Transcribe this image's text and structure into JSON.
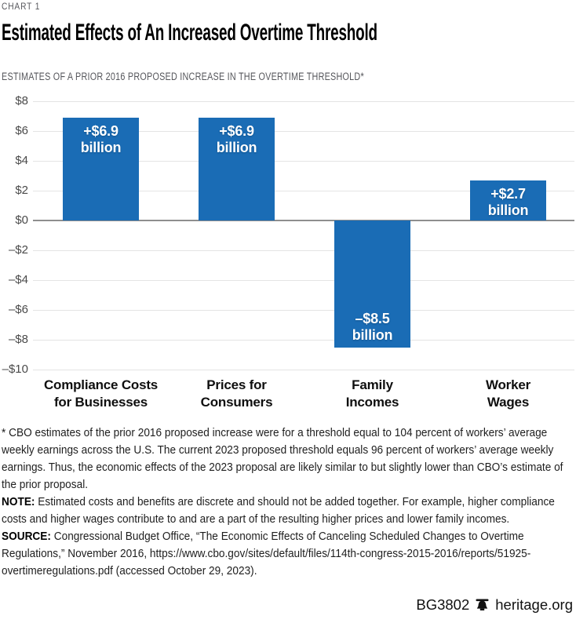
{
  "page": {
    "kicker": "CHART 1",
    "title": "Estimated Effects of An Increased Overtime Threshold",
    "subtitle": "ESTIMATES OF A PRIOR 2016 PROPOSED INCREASE IN THE OVERTIME THRESHOLD*",
    "footnote": "* CBO estimates of the prior 2016 proposed increase were for a threshold equal to 104 percent of workers’ average weekly earnings across the U.S. The current 2023 proposed threshold equals 96 percent of workers’ average weekly earnings. Thus, the economic effects of the 2023 proposal are likely similar to but slightly lower than CBO’s estimate of the prior proposal.",
    "note_label": "NOTE:",
    "note": " Estimated costs and benefits are discrete and should not be added together. For example, higher compliance costs and higher wages contribute to and are a part of the resulting higher prices and lower family incomes.",
    "source_label": "SOURCE:",
    "source": " Congressional Budget Office, “The Economic Effects of Canceling Scheduled Changes to Overtime Regulations,” November 2016, https://www.cbo.gov/sites/default/files/114th-congress-2015-2016/reports/51925-overtimeregulations.pdf (accessed October 29, 2023).",
    "doc_id": "BG3802",
    "site": "heritage.org"
  },
  "colors": {
    "bar": "#1a6cb5",
    "grid": "#e4e4e4",
    "zero_line": "#8f8f8f",
    "tick_text": "#4a4a4a",
    "kicker_text": "#55565b"
  },
  "chart_data": {
    "type": "bar",
    "title": "Estimated Effects of An Increased Overtime Threshold",
    "subtitle": "ESTIMATES OF A PRIOR 2016 PROPOSED INCREASE IN THE OVERTIME THRESHOLD*",
    "categories": [
      [
        "Compliance Costs",
        "for Businesses"
      ],
      [
        "Prices for",
        "Consumers"
      ],
      [
        "Family",
        "Incomes"
      ],
      [
        "Worker",
        "Wages"
      ]
    ],
    "values": [
      6.9,
      6.9,
      -8.5,
      2.7
    ],
    "bar_labels": [
      [
        "+$6.9",
        "billion"
      ],
      [
        "+$6.9",
        "billion"
      ],
      [
        "–$8.5",
        "billion"
      ],
      [
        "+$2.7",
        "billion"
      ]
    ],
    "y_ticks": [
      8,
      6,
      4,
      2,
      0,
      -2,
      -4,
      -6,
      -8,
      -10
    ],
    "y_tick_labels": [
      "$8",
      "$6",
      "$4",
      "$2",
      "$0",
      "–$2",
      "–$4",
      "–$6",
      "–$8",
      "–$10"
    ],
    "ylim": [
      -10,
      8
    ],
    "xlabel": "",
    "ylabel": "",
    "grid": true,
    "legend": "none",
    "units": "billions of dollars (as labeled on bars)"
  }
}
